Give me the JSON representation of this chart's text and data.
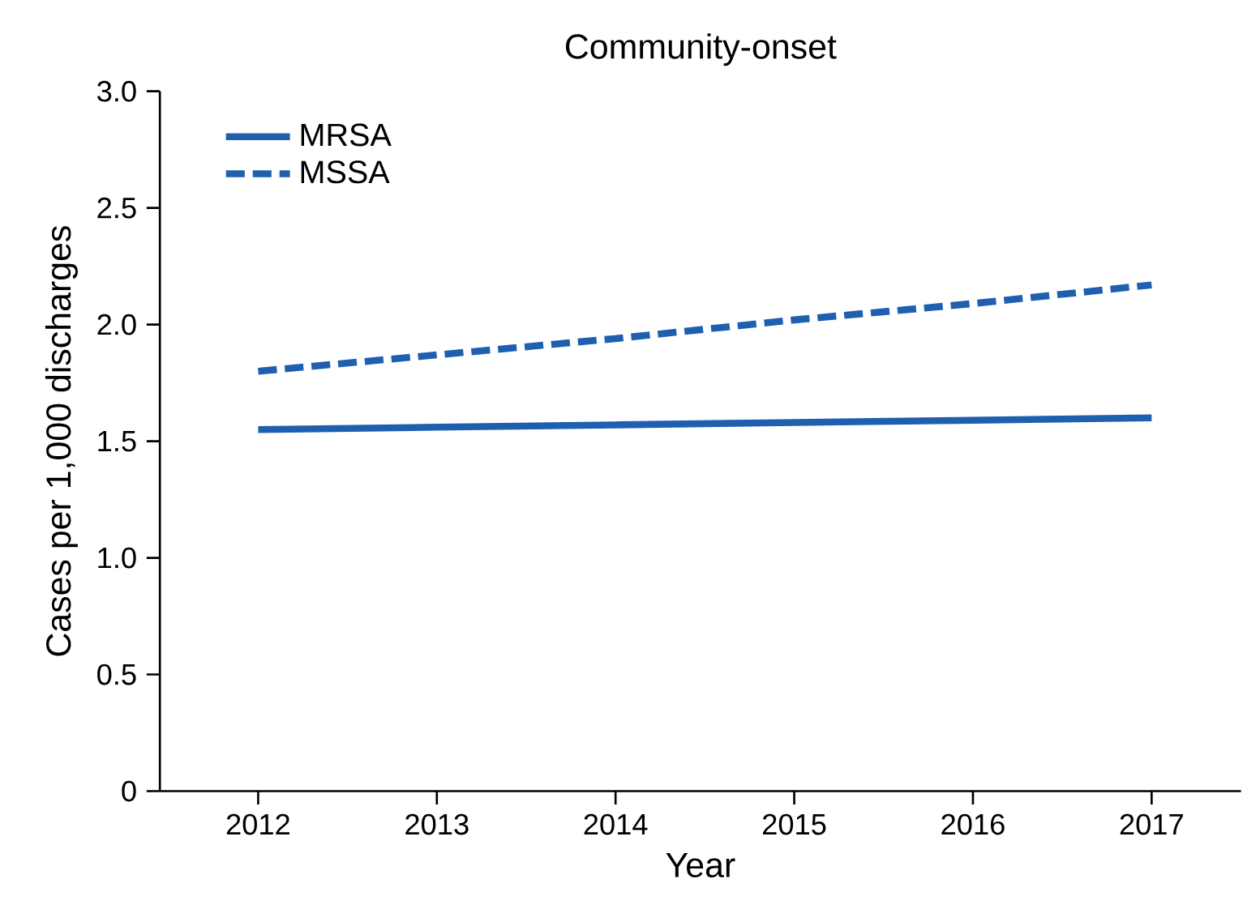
{
  "chart_data": {
    "type": "line",
    "title": "Community-onset",
    "xlabel": "Year",
    "ylabel": "Cases per 1,000 discharges",
    "xlim": [
      2011.45,
      2017.5
    ],
    "xticks": [
      2012,
      2013,
      2014,
      2015,
      2016,
      2017
    ],
    "ylim": [
      0,
      3
    ],
    "yticks": [
      {
        "value": 0,
        "label": "0"
      },
      {
        "value": 0.5,
        "label": "0.5"
      },
      {
        "value": 1,
        "label": "1.0"
      },
      {
        "value": 1.5,
        "label": "1.5"
      },
      {
        "value": 2,
        "label": "2.0"
      },
      {
        "value": 2.5,
        "label": "2.5"
      },
      {
        "value": 3,
        "label": "3.0"
      }
    ],
    "legend": "top left",
    "grid": false,
    "marker": "none",
    "series": [
      {
        "name": "MRSA",
        "color": "#1f5fb0",
        "line_style": "solid",
        "x": [
          2012,
          2013,
          2014,
          2015,
          2016,
          2017
        ],
        "values": [
          1.55,
          1.56,
          1.57,
          1.58,
          1.59,
          1.6
        ]
      },
      {
        "name": "MSSA",
        "color": "#1f5fb0",
        "line_style": "dashed",
        "x": [
          2012,
          2013,
          2014,
          2015,
          2016,
          2017
        ],
        "values": [
          1.8,
          1.87,
          1.94,
          2.02,
          2.09,
          2.17
        ]
      }
    ]
  }
}
